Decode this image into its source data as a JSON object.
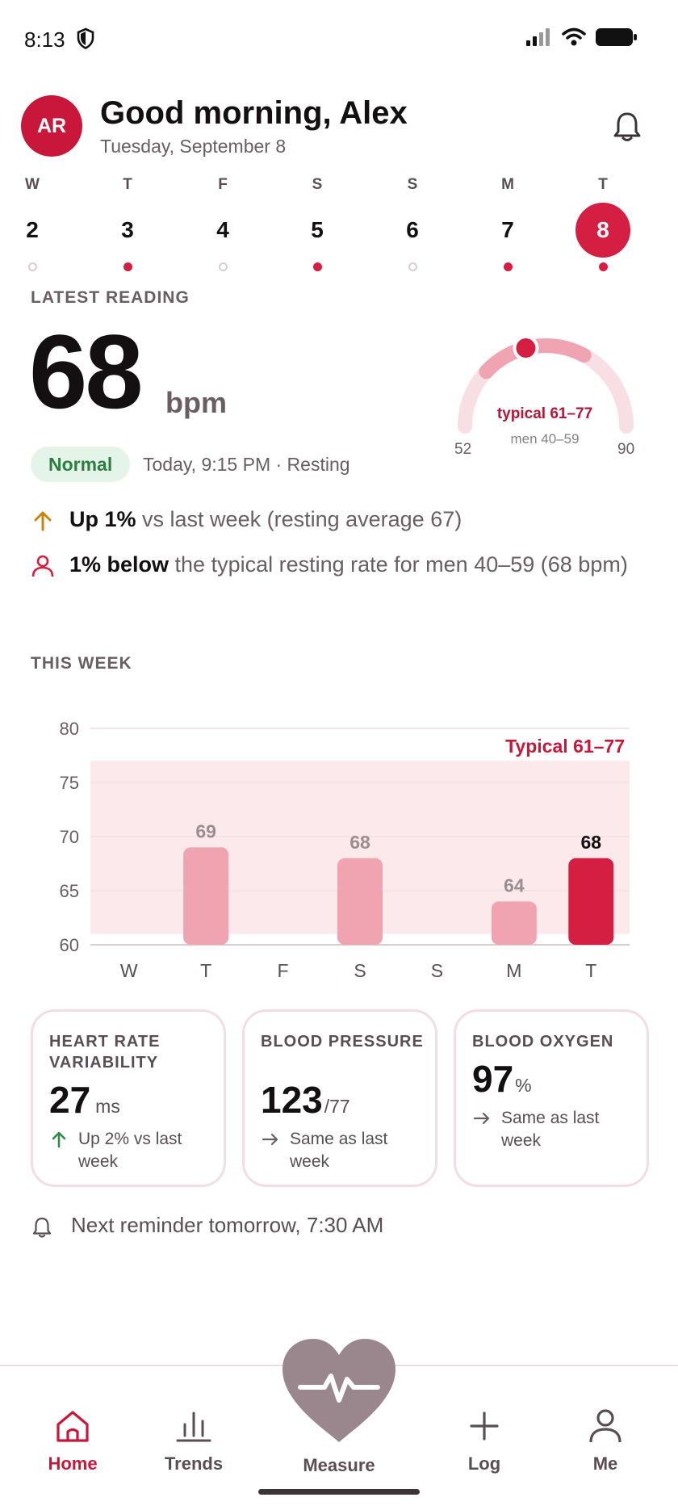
{
  "status_bar": {
    "time": "8:13"
  },
  "header": {
    "avatar_initials": "AR",
    "greeting": "Good morning, Alex",
    "date": "Tuesday, September 8"
  },
  "week": [
    {
      "letter": "W",
      "num": "2",
      "has_reading": false,
      "selected": false
    },
    {
      "letter": "T",
      "num": "3",
      "has_reading": true,
      "selected": false
    },
    {
      "letter": "F",
      "num": "4",
      "has_reading": false,
      "selected": false
    },
    {
      "letter": "S",
      "num": "5",
      "has_reading": true,
      "selected": false
    },
    {
      "letter": "S",
      "num": "6",
      "has_reading": false,
      "selected": false
    },
    {
      "letter": "M",
      "num": "7",
      "has_reading": true,
      "selected": false
    },
    {
      "letter": "T",
      "num": "8",
      "has_reading": true,
      "selected": true
    }
  ],
  "latest": {
    "label": "LATEST READING",
    "value": "68",
    "unit": "bpm",
    "status": "Normal",
    "meta": "Today, 9:15 PM · Resting",
    "gauge": {
      "min": "52",
      "max": "90",
      "typical": "typical 61–77",
      "men": "men 40–59",
      "min_value": 52,
      "max_value": 90,
      "typical_low": 61,
      "typical_high": 77,
      "current": 68
    }
  },
  "insights": [
    {
      "icon": "arrow-up-icon",
      "bold": "Up 1%",
      "rest": " vs last week (resting average 67)"
    },
    {
      "icon": "person-icon",
      "bold": "1% below",
      "rest": " the typical resting rate for men 40–59 (68 bpm)"
    }
  ],
  "this_week_label": "THIS WEEK",
  "chart_data": {
    "type": "bar",
    "categories": [
      "W",
      "T",
      "F",
      "S",
      "S",
      "M",
      "T"
    ],
    "values": [
      null,
      69,
      null,
      68,
      null,
      64,
      68
    ],
    "ylim": [
      60,
      80
    ],
    "yticks": [
      80,
      75,
      70,
      65,
      60
    ],
    "band": {
      "low": 61,
      "high": 77,
      "label": "Typical 61–77"
    },
    "highlight_index": 6,
    "grid": true
  },
  "cards": [
    {
      "title": "HEART RATE VARIABILITY",
      "value": "27",
      "unit": "ms",
      "trend": "Up 2% vs last week",
      "trend_icon": "arrow-up-icon"
    },
    {
      "title": "BLOOD PRESSURE",
      "value": "123",
      "unit": "/77",
      "trend": "Same as last week",
      "trend_icon": "arrow-right-icon"
    },
    {
      "title": "BLOOD OXYGEN",
      "value": "97",
      "unit": "%",
      "trend": "Same as last week",
      "trend_icon": "arrow-right-icon"
    }
  ],
  "reminder": "Next reminder tomorrow, 7:30 AM",
  "nav": {
    "home": "Home",
    "trends": "Trends",
    "measure": "Measure",
    "log": "Log",
    "me": "Me"
  },
  "colors": {
    "accent": "#d41f42",
    "bar": "#f0a3b0",
    "band": "#fce9ec",
    "normal_bg": "#e4f4e8",
    "normal_text": "#2e7d42"
  }
}
